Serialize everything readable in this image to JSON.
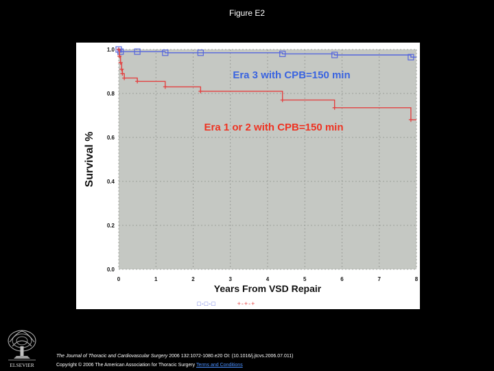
{
  "figure_title": "Figure E2",
  "citation": {
    "journal": "The Journal of Thoracic and Cardiovascular Surgery",
    "details": "2006 132:1072-1080.e20 OI: (10.1016/j.jtcvs.2006.07.011)",
    "copyright": "Copyright © 2006 The American Association for Thoracic Surgery",
    "terms_link": "Terms and Conditions"
  },
  "logo": {
    "name": "elsevier-tree-icon",
    "text": "ELSEVIER"
  },
  "colors": {
    "plot_background": "#c5c8c3",
    "grid": "#8f928d",
    "era3": "#5566dd",
    "era12": "#e34040",
    "era3_label": "#3a64e0",
    "era12_label": "#ee3322",
    "axis_text": "#101010"
  },
  "chart_data": {
    "type": "line",
    "title": "",
    "xlabel": "Years From VSD Repair",
    "ylabel": "Survival %",
    "xlim": [
      0,
      8
    ],
    "ylim": [
      0,
      1
    ],
    "x_ticks": [
      "0",
      "1",
      "2",
      "3",
      "4",
      "5",
      "6",
      "7",
      "8"
    ],
    "y_ticks": [
      "0.0",
      "0.2",
      "0.4",
      "0.6",
      "0.8",
      "1.0"
    ],
    "grid": true,
    "step": true,
    "series": [
      {
        "name": "Era 3 with CPB=150 min",
        "marker": "square",
        "x": [
          0,
          0.05,
          0.5,
          1.25,
          2.2,
          4.4,
          5.8,
          7.85
        ],
        "y": [
          1.0,
          0.99,
          0.99,
          0.985,
          0.985,
          0.98,
          0.975,
          0.965
        ]
      },
      {
        "name": "Era 1 or 2 with CPB=150 min",
        "marker": "plus",
        "x": [
          0,
          0.02,
          0.05,
          0.08,
          0.1,
          0.15,
          0.5,
          1.25,
          2.2,
          4.4,
          5.8,
          7.85
        ],
        "y": [
          1.0,
          0.97,
          0.94,
          0.91,
          0.89,
          0.87,
          0.855,
          0.83,
          0.81,
          0.77,
          0.735,
          0.68
        ]
      }
    ],
    "legend_glyphs": [
      "□-□-□",
      "+-+-+"
    ]
  }
}
